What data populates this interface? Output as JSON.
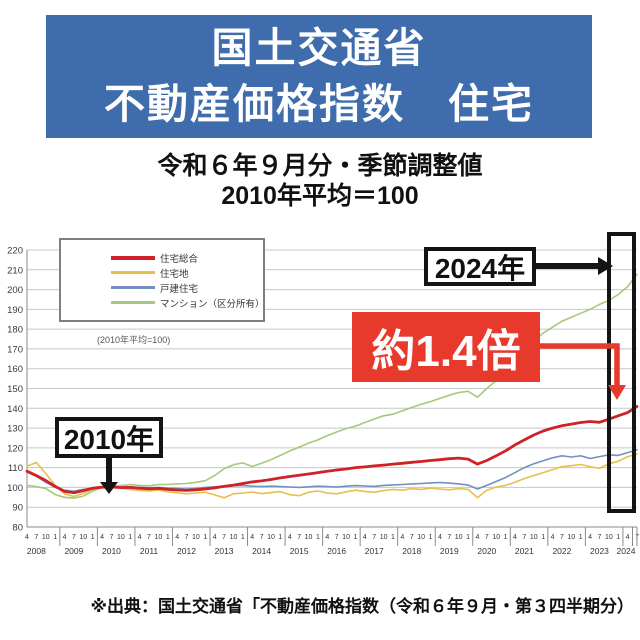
{
  "header": {
    "title_line1": "国土交通省",
    "title_line2": "不動産価格指数　住宅",
    "bg_color": "#3e6cac",
    "subtitle1": "令和６年９月分・季節調整値",
    "subtitle2": "2010年平均＝100"
  },
  "annotations": {
    "year2024_label": "2024年",
    "ratio_label": "約1.4倍",
    "year2010_label": "2010年",
    "accent_red": "#e8392d",
    "accent_black": "#141414"
  },
  "footer": {
    "source": "※出典：国土交通省「不動産価格指数（令和６年９月・第３四半期分）"
  },
  "chart_data": {
    "type": "line",
    "title": "不動産価格指数（住宅）",
    "note": "(2010年平均=100)",
    "ylim": [
      80,
      220
    ],
    "ytick_step": 10,
    "grid": "horizontal",
    "legend_position": "top-left",
    "x_frequency": "quarterly",
    "x_start": "2008-04",
    "x_end": "2024-07",
    "month_cycle": [
      "4",
      "7",
      "10",
      "1"
    ],
    "years": [
      "2008",
      "2009",
      "2010",
      "2011",
      "2012",
      "2013",
      "2014",
      "2015",
      "2016",
      "2017",
      "2018",
      "2019",
      "2020",
      "2021",
      "2022",
      "2023",
      "2024"
    ],
    "series": [
      {
        "name": "住宅総合",
        "color": "#cf2128",
        "width": 2.8,
        "values": [
          108.2,
          106.0,
          103.5,
          100.5,
          98.0,
          97.3,
          98.4,
          99.6,
          100.1,
          100.2,
          99.9,
          100.0,
          99.6,
          99.3,
          99.5,
          99.0,
          98.7,
          98.5,
          98.8,
          99.2,
          99.8,
          100.5,
          101.2,
          102.0,
          102.8,
          103.3,
          104.0,
          104.8,
          105.5,
          106.2,
          106.8,
          107.5,
          108.2,
          108.8,
          109.3,
          110.0,
          110.4,
          110.9,
          111.3,
          111.8,
          112.2,
          112.7,
          113.1,
          113.6,
          114.0,
          114.5,
          114.8,
          114.3,
          111.8,
          113.6,
          116.0,
          118.5,
          121.5,
          124.0,
          126.5,
          128.5,
          130.0,
          131.2,
          132.0,
          132.8,
          133.3,
          132.9,
          134.5,
          136.2,
          137.8,
          140.9
        ]
      },
      {
        "name": "住宅地",
        "color": "#e6c04b",
        "width": 1.6,
        "values": [
          110.8,
          112.6,
          107.0,
          101.0,
          96.8,
          95.4,
          97.0,
          99.0,
          100.2,
          100.4,
          99.6,
          99.0,
          98.5,
          98.2,
          98.6,
          97.8,
          97.3,
          96.8,
          97.2,
          97.6,
          96.2,
          94.8,
          96.8,
          97.2,
          97.7,
          96.9,
          97.4,
          97.9,
          96.3,
          95.8,
          97.6,
          98.2,
          97.2,
          96.8,
          97.8,
          98.6,
          98.0,
          97.6,
          98.4,
          99.0,
          98.6,
          99.4,
          99.0,
          99.6,
          99.2,
          98.8,
          99.4,
          99.0,
          94.8,
          98.6,
          100.2,
          101.0,
          102.6,
          104.5,
          106.0,
          107.5,
          109.0,
          110.5,
          111.0,
          111.6,
          110.5,
          109.6,
          112.0,
          113.2,
          115.6,
          116.9
        ]
      },
      {
        "name": "戸建住宅",
        "color": "#7291bd",
        "width": 1.6,
        "values": [
          107.8,
          105.6,
          102.6,
          100.0,
          98.6,
          98.1,
          99.0,
          99.6,
          100.1,
          100.2,
          100.0,
          100.2,
          100.0,
          99.8,
          100.0,
          99.6,
          99.4,
          99.2,
          99.5,
          100.0,
          100.3,
          100.6,
          100.8,
          101.0,
          100.6,
          100.4,
          100.6,
          100.4,
          100.2,
          100.0,
          100.3,
          100.6,
          100.4,
          100.2,
          100.6,
          100.9,
          100.7,
          100.5,
          101.0,
          101.3,
          101.5,
          101.8,
          102.0,
          102.3,
          102.5,
          102.2,
          101.8,
          101.2,
          99.2,
          101.0,
          103.0,
          105.0,
          107.5,
          110.0,
          112.0,
          113.5,
          115.0,
          116.0,
          115.4,
          116.0,
          114.6,
          115.6,
          116.5,
          116.2,
          117.6,
          119.0
        ]
      },
      {
        "name": "マンション（区分所有）",
        "color": "#a5c87d",
        "width": 1.6,
        "values": [
          101.0,
          100.4,
          99.4,
          96.4,
          95.0,
          94.6,
          95.6,
          98.2,
          100.0,
          100.6,
          100.9,
          101.4,
          101.0,
          100.8,
          101.5,
          101.5,
          101.8,
          102.0,
          102.6,
          103.4,
          106.0,
          109.5,
          111.5,
          112.4,
          110.6,
          112.2,
          114.0,
          116.2,
          118.4,
          120.4,
          122.4,
          124.0,
          126.2,
          128.0,
          129.8,
          131.0,
          132.8,
          134.6,
          136.2,
          137.0,
          138.8,
          140.4,
          142.0,
          143.4,
          145.0,
          146.6,
          148.0,
          148.6,
          145.6,
          150.0,
          154.0,
          158.0,
          163.0,
          168.5,
          174.0,
          178.0,
          181.0,
          184.0,
          186.0,
          188.0,
          190.0,
          192.5,
          194.5,
          197.5,
          201.5,
          207.7
        ]
      }
    ]
  }
}
